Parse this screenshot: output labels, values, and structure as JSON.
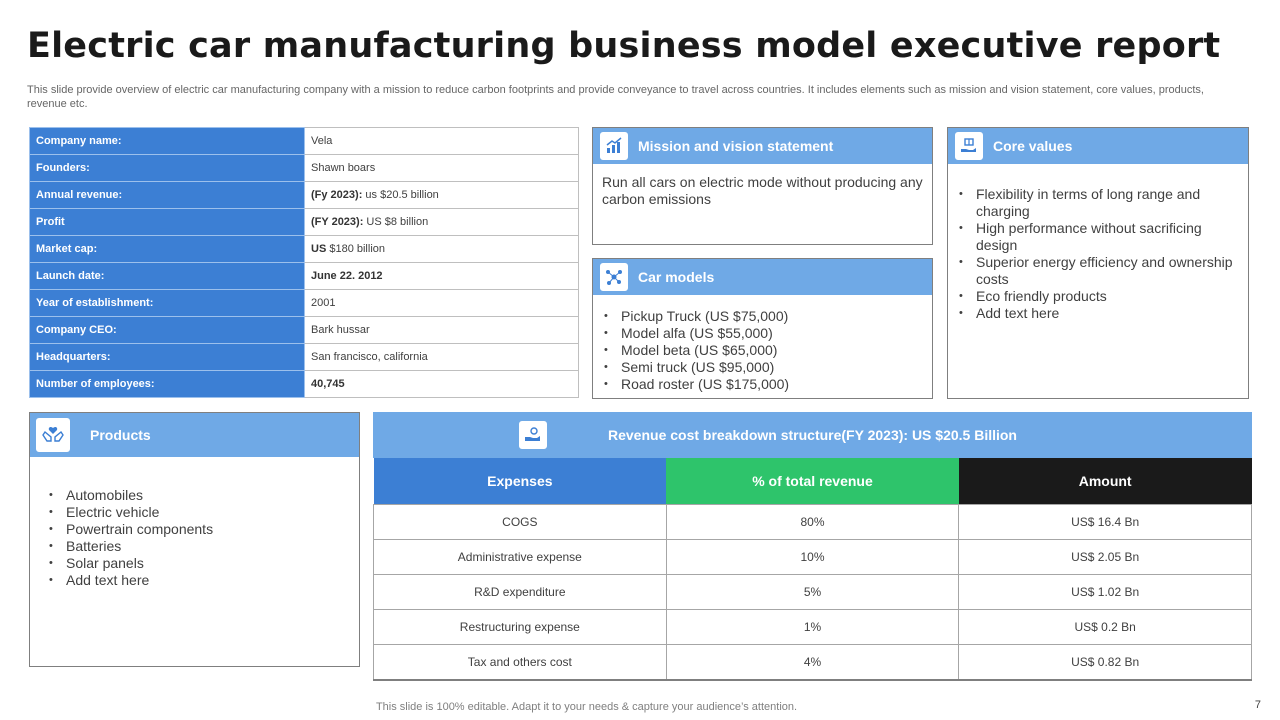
{
  "title": "Electric car manufacturing business model executive report",
  "subtitle": "This slide provide overview of electric car manufacturing company with a mission to reduce carbon footprints and provide conveyance to travel across countries. It includes elements such as mission and vision statement, core values, products, revenue etc.",
  "company": [
    {
      "label": "Company name:",
      "value": "Vela"
    },
    {
      "label": "Founders:",
      "value": "Shawn boars"
    },
    {
      "label": "Annual revenue:",
      "prefix": "(Fy 2023):",
      "value": " us $20.5 billion"
    },
    {
      "label": "Profit",
      "prefix": "(FY 2023):",
      "value": " US $8 billion"
    },
    {
      "label": "Market cap:",
      "prefix": "US",
      "value": " $180 billion"
    },
    {
      "label": "Launch date:",
      "prefix": "June 22. 2012",
      "value": ""
    },
    {
      "label": "Year of establishment:",
      "value": "2001"
    },
    {
      "label": "Company CEO:",
      "value": "Bark hussar"
    },
    {
      "label": "Headquarters:",
      "value": "San francisco, california"
    },
    {
      "label": "Number of employees:",
      "prefix": "40,745",
      "value": ""
    }
  ],
  "mission": {
    "heading": "Mission and vision statement",
    "text": "Run all cars on electric mode without producing any carbon emissions"
  },
  "car_models": {
    "heading": "Car models",
    "items": [
      "Pickup Truck (US $75,000)",
      "Model alfa (US $55,000)",
      "Model beta (US $65,000)",
      "Semi truck (US $95,000)",
      "Road roster (US $175,000)"
    ]
  },
  "core_values": {
    "heading": "Core values",
    "items": [
      "Flexibility in terms of long range and charging",
      "High performance without sacrificing design",
      "Superior energy efficiency and ownership costs",
      "Eco friendly products",
      "Add text here"
    ]
  },
  "products": {
    "heading": "Products",
    "items": [
      "Automobiles",
      "Electric vehicle",
      "Powertrain components",
      "Batteries",
      "Solar panels",
      "Add text here"
    ]
  },
  "revenue": {
    "heading": "Revenue cost breakdown structure(FY 2023): US $20.5 Billion",
    "columns": [
      "Expenses",
      "% of total revenue",
      "Amount"
    ],
    "rows": [
      [
        "COGS",
        "80%",
        "US$ 16.4 Bn"
      ],
      [
        "Administrative expense",
        "10%",
        "US$ 2.05 Bn"
      ],
      [
        "R&D expenditure",
        "5%",
        "US$ 1.02 Bn"
      ],
      [
        "Restructuring expense",
        "1%",
        "US$ 0.2 Bn"
      ],
      [
        "Tax and others cost",
        "4%",
        "US$ 0.82 Bn"
      ]
    ]
  },
  "footer": "This slide is 100% editable. Adapt it to your needs & capture your audience’s attention.",
  "page_number": "7",
  "icons": {
    "mission": "chart-growth-icon",
    "car_models": "network-nodes-icon",
    "core_values": "hand-gift-icon",
    "products": "hands-care-icon",
    "revenue": "hand-coins-icon"
  },
  "colors": {
    "header_blue": "#3c7fd4",
    "panel_blue": "#6fa9e6",
    "green": "#2ec46b",
    "black": "#1a1a1a"
  }
}
